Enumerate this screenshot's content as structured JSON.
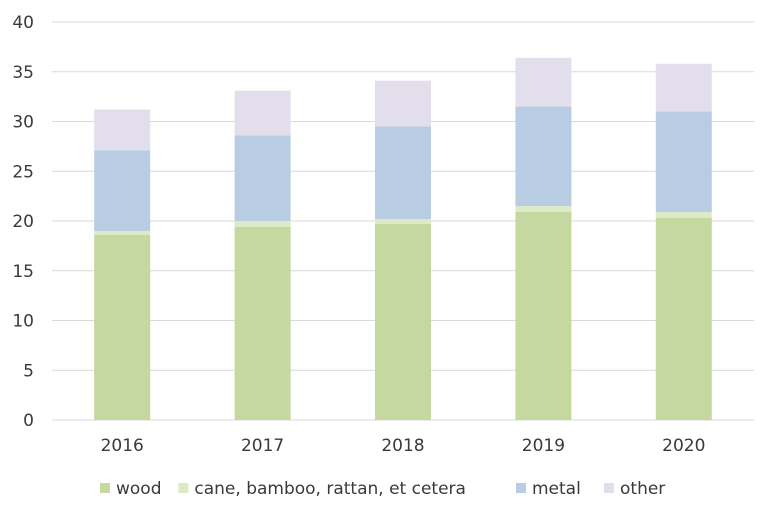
{
  "chart_data": {
    "type": "bar",
    "stacked": true,
    "title": "",
    "xlabel": "",
    "ylabel": "",
    "categories": [
      "2016",
      "2017",
      "2018",
      "2019",
      "2020"
    ],
    "ylim": [
      0,
      40
    ],
    "yticks": [
      0,
      5,
      10,
      15,
      20,
      25,
      30,
      35,
      40
    ],
    "grid": true,
    "legend_position": "bottom",
    "series": [
      {
        "name": "wood",
        "color": "#c5d89f",
        "values": [
          18.6,
          19.4,
          19.7,
          20.9,
          20.3
        ]
      },
      {
        "name": "cane, bamboo, rattan, et cetera",
        "color": "#deeac6",
        "values": [
          0.4,
          0.6,
          0.5,
          0.6,
          0.6
        ]
      },
      {
        "name": "metal",
        "color": "#b8cde4",
        "values": [
          8.1,
          8.6,
          9.3,
          10.0,
          10.1
        ]
      },
      {
        "name": "other",
        "color": "#e3deec",
        "values": [
          4.1,
          4.5,
          4.6,
          4.9,
          4.8
        ]
      }
    ]
  }
}
